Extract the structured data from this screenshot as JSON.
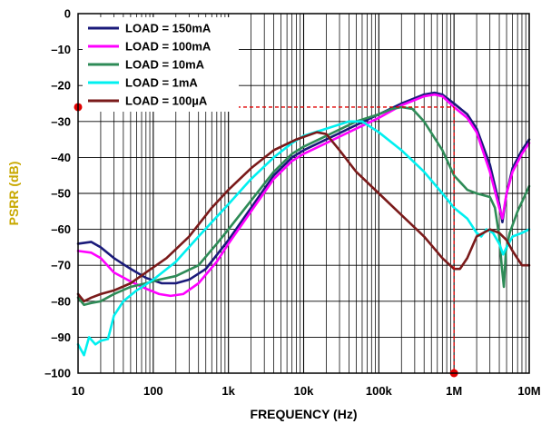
{
  "chart_data": {
    "type": "line",
    "xlabel": "FREQUENCY (Hz)",
    "ylabel": "PSRR (dB)",
    "x_scale": "log",
    "xlim": [
      10,
      10000000
    ],
    "ylim": [
      -100,
      0
    ],
    "x_ticks": [
      {
        "value": 10,
        "label": "10"
      },
      {
        "value": 100,
        "label": "100"
      },
      {
        "value": 1000,
        "label": "1k"
      },
      {
        "value": 10000,
        "label": "10k"
      },
      {
        "value": 100000,
        "label": "100k"
      },
      {
        "value": 1000000,
        "label": "1M"
      },
      {
        "value": 10000000,
        "label": "10M"
      }
    ],
    "y_ticks": [
      {
        "value": 0,
        "label": "0"
      },
      {
        "value": -10,
        "label": "–10"
      },
      {
        "value": -20,
        "label": "–20"
      },
      {
        "value": -30,
        "label": "–30"
      },
      {
        "value": -40,
        "label": "–40"
      },
      {
        "value": -50,
        "label": "–50"
      },
      {
        "value": -60,
        "label": "–60"
      },
      {
        "value": -70,
        "label": "–70"
      },
      {
        "value": -80,
        "label": "–80"
      },
      {
        "value": -90,
        "label": "–90"
      },
      {
        "value": -100,
        "label": "–100"
      }
    ],
    "grid": true,
    "legend_position": "top-left",
    "series": [
      {
        "name": "LOAD = 150mA",
        "color": "#1a1a7a",
        "points": [
          [
            10,
            -64
          ],
          [
            15,
            -63.5
          ],
          [
            20,
            -65
          ],
          [
            30,
            -68
          ],
          [
            50,
            -71
          ],
          [
            80,
            -73.5
          ],
          [
            130,
            -75
          ],
          [
            200,
            -75
          ],
          [
            300,
            -74
          ],
          [
            500,
            -71
          ],
          [
            1000,
            -63
          ],
          [
            2000,
            -54
          ],
          [
            4000,
            -45
          ],
          [
            7000,
            -40
          ],
          [
            10000,
            -38
          ],
          [
            20000,
            -35
          ],
          [
            50000,
            -31
          ],
          [
            100000,
            -28
          ],
          [
            200000,
            -25
          ],
          [
            400000,
            -22.5
          ],
          [
            550000,
            -22
          ],
          [
            700000,
            -22.5
          ],
          [
            1000000,
            -25
          ],
          [
            1500000,
            -28
          ],
          [
            2000000,
            -32
          ],
          [
            3000000,
            -42
          ],
          [
            4000000,
            -53
          ],
          [
            4400000,
            -58
          ],
          [
            5000000,
            -50
          ],
          [
            6000000,
            -43
          ],
          [
            8000000,
            -38
          ],
          [
            10000000,
            -35
          ]
        ]
      },
      {
        "name": "LOAD = 100mA",
        "color": "#ff00ff",
        "points": [
          [
            10,
            -66
          ],
          [
            15,
            -66.5
          ],
          [
            20,
            -68
          ],
          [
            30,
            -72
          ],
          [
            50,
            -74.5
          ],
          [
            80,
            -76.5
          ],
          [
            120,
            -78
          ],
          [
            170,
            -78.5
          ],
          [
            250,
            -78
          ],
          [
            400,
            -75
          ],
          [
            700,
            -69
          ],
          [
            1000,
            -64
          ],
          [
            2000,
            -55
          ],
          [
            4000,
            -46
          ],
          [
            7000,
            -41
          ],
          [
            10000,
            -39
          ],
          [
            20000,
            -36
          ],
          [
            50000,
            -32
          ],
          [
            100000,
            -29
          ],
          [
            200000,
            -25.5
          ],
          [
            400000,
            -23
          ],
          [
            550000,
            -22.5
          ],
          [
            700000,
            -23
          ],
          [
            1000000,
            -26
          ],
          [
            1500000,
            -29
          ],
          [
            2000000,
            -33
          ],
          [
            3000000,
            -44
          ],
          [
            4000000,
            -54
          ],
          [
            4400000,
            -57
          ],
          [
            5000000,
            -50
          ],
          [
            6000000,
            -44
          ],
          [
            8000000,
            -39
          ],
          [
            10000000,
            -36
          ]
        ]
      },
      {
        "name": "LOAD = 10mA",
        "color": "#2e8b57",
        "points": [
          [
            10,
            -79
          ],
          [
            12,
            -81
          ],
          [
            15,
            -80.5
          ],
          [
            20,
            -80
          ],
          [
            30,
            -78
          ],
          [
            50,
            -76
          ],
          [
            80,
            -75
          ],
          [
            120,
            -74
          ],
          [
            200,
            -73
          ],
          [
            400,
            -70
          ],
          [
            700,
            -64
          ],
          [
            1000,
            -60
          ],
          [
            2000,
            -52
          ],
          [
            4000,
            -44
          ],
          [
            7000,
            -39
          ],
          [
            10000,
            -37
          ],
          [
            20000,
            -34
          ],
          [
            50000,
            -30
          ],
          [
            100000,
            -28
          ],
          [
            150000,
            -26.5
          ],
          [
            200000,
            -26
          ],
          [
            280000,
            -26.5
          ],
          [
            400000,
            -30
          ],
          [
            700000,
            -38
          ],
          [
            1000000,
            -45
          ],
          [
            1500000,
            -49
          ],
          [
            2000000,
            -50
          ],
          [
            3000000,
            -51
          ],
          [
            3500000,
            -54
          ],
          [
            4000000,
            -62
          ],
          [
            4300000,
            -70
          ],
          [
            4600000,
            -76
          ],
          [
            4900000,
            -66
          ],
          [
            5500000,
            -61
          ],
          [
            7000000,
            -55
          ],
          [
            10000000,
            -48
          ]
        ]
      },
      {
        "name": "LOAD = 1mA",
        "color": "#00f0f0",
        "points": [
          [
            10,
            -92
          ],
          [
            12,
            -95
          ],
          [
            14,
            -90
          ],
          [
            17,
            -92
          ],
          [
            20,
            -91
          ],
          [
            25,
            -90.5
          ],
          [
            30,
            -84
          ],
          [
            40,
            -80
          ],
          [
            60,
            -77
          ],
          [
            100,
            -74
          ],
          [
            200,
            -69
          ],
          [
            400,
            -62
          ],
          [
            1000,
            -53
          ],
          [
            2000,
            -46
          ],
          [
            4000,
            -40
          ],
          [
            7000,
            -36
          ],
          [
            10000,
            -34
          ],
          [
            20000,
            -32
          ],
          [
            40000,
            -30
          ],
          [
            60000,
            -30
          ],
          [
            100000,
            -33
          ],
          [
            200000,
            -38
          ],
          [
            400000,
            -44
          ],
          [
            700000,
            -50
          ],
          [
            1000000,
            -54
          ],
          [
            1500000,
            -57
          ],
          [
            2000000,
            -61
          ],
          [
            2300000,
            -62
          ],
          [
            2700000,
            -60
          ],
          [
            3300000,
            -61
          ],
          [
            4000000,
            -64
          ],
          [
            4500000,
            -67
          ],
          [
            5000000,
            -65
          ],
          [
            6000000,
            -62
          ],
          [
            8000000,
            -61
          ],
          [
            10000000,
            -60
          ]
        ]
      },
      {
        "name": "LOAD = 100µA",
        "color": "#7a1a1a",
        "points": [
          [
            10,
            -78
          ],
          [
            12,
            -80
          ],
          [
            15,
            -79
          ],
          [
            20,
            -78
          ],
          [
            30,
            -77
          ],
          [
            50,
            -75
          ],
          [
            80,
            -72
          ],
          [
            150,
            -68
          ],
          [
            300,
            -62
          ],
          [
            600,
            -54
          ],
          [
            1000,
            -49
          ],
          [
            2000,
            -43
          ],
          [
            4000,
            -38
          ],
          [
            8000,
            -35
          ],
          [
            15000,
            -33
          ],
          [
            20000,
            -33.5
          ],
          [
            30000,
            -38
          ],
          [
            50000,
            -44
          ],
          [
            100000,
            -50
          ],
          [
            200000,
            -56
          ],
          [
            400000,
            -62
          ],
          [
            700000,
            -68
          ],
          [
            1000000,
            -71
          ],
          [
            1200000,
            -71
          ],
          [
            1500000,
            -68
          ],
          [
            2000000,
            -62
          ],
          [
            3000000,
            -60
          ],
          [
            4000000,
            -61
          ],
          [
            5000000,
            -63
          ],
          [
            6000000,
            -66
          ],
          [
            8000000,
            -70
          ],
          [
            10000000,
            -70
          ]
        ]
      }
    ],
    "annotations": [
      {
        "type": "dashed-marker",
        "color": "#e00000",
        "x": 1000000,
        "y": -26
      }
    ]
  }
}
